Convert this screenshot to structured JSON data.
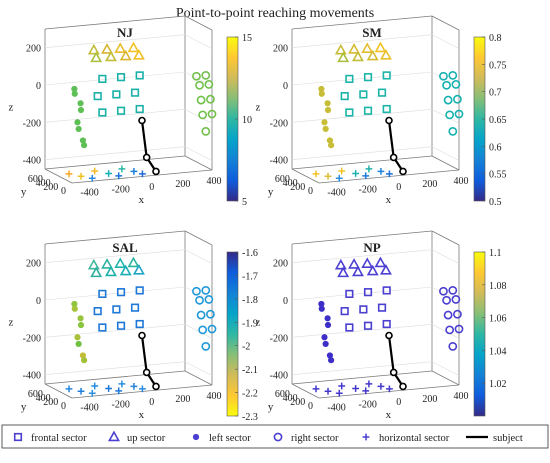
{
  "chart_data": {
    "type": "scatter",
    "title": "Point-to-point reaching movements",
    "xlabel": "x",
    "ylabel": "y",
    "zlabel": "z",
    "x_ticks": [
      "-400",
      "-200",
      "0",
      "200",
      "400"
    ],
    "y_ticks": [
      "0",
      "200",
      "400",
      "600"
    ],
    "z_ticks": [
      "200",
      "0",
      "-200",
      "-400"
    ],
    "xlim": [
      -500,
      400
    ],
    "ylim": [
      0,
      700
    ],
    "zlim": [
      -450,
      300
    ],
    "legend": {
      "placement": "bottom",
      "entries": [
        {
          "label": "frontal sector",
          "marker": "square"
        },
        {
          "label": "up sector",
          "marker": "triangle"
        },
        {
          "label": "left sector",
          "marker": "dot"
        },
        {
          "label": "right sector",
          "marker": "circle"
        },
        {
          "label": "horizontal sector",
          "marker": "plus"
        },
        {
          "label": "subject",
          "marker": "line"
        }
      ]
    },
    "subject_segments": [
      [
        -50,
        0,
        -150
      ],
      [
        -20,
        0,
        -350
      ],
      [
        40,
        0,
        -430
      ]
    ],
    "sectors": [
      {
        "name": "frontal sector",
        "marker": "square",
        "points": [
          [
            -280,
            100,
            80
          ],
          [
            -160,
            100,
            80
          ],
          [
            -40,
            100,
            80
          ],
          [
            -310,
            100,
            -10
          ],
          [
            -190,
            100,
            -10
          ],
          [
            -70,
            100,
            -10
          ],
          [
            -280,
            100,
            -100
          ],
          [
            -160,
            100,
            -100
          ],
          [
            -40,
            100,
            -100
          ]
        ]
      },
      {
        "name": "up sector",
        "marker": "triangle",
        "points": [
          [
            -320,
            160,
            230
          ],
          [
            -240,
            140,
            230
          ],
          [
            -160,
            120,
            230
          ],
          [
            -80,
            100,
            230
          ],
          [
            -290,
            220,
            180
          ],
          [
            -200,
            200,
            180
          ],
          [
            -110,
            180,
            180
          ],
          [
            -30,
            160,
            180
          ]
        ]
      },
      {
        "name": "left sector",
        "marker": "dot",
        "points": [
          [
            -460,
            100,
            40
          ],
          [
            -450,
            130,
            10
          ],
          [
            -420,
            100,
            -40
          ],
          [
            -410,
            130,
            -80
          ],
          [
            -440,
            100,
            -140
          ],
          [
            -425,
            130,
            -180
          ],
          [
            -405,
            100,
            -240
          ],
          [
            -390,
            130,
            -270
          ]
        ]
      },
      {
        "name": "right sector",
        "marker": "circle",
        "points": [
          [
            300,
            0,
            60
          ],
          [
            360,
            0,
            60
          ],
          [
            320,
            0,
            10
          ],
          [
            380,
            0,
            10
          ],
          [
            330,
            0,
            -70
          ],
          [
            390,
            0,
            -70
          ],
          [
            340,
            0,
            -150
          ],
          [
            400,
            0,
            -150
          ],
          [
            360,
            0,
            -240
          ]
        ]
      },
      {
        "name": "horizontal sector",
        "marker": "plus",
        "points": [
          [
            -420,
            400,
            -450
          ],
          [
            -250,
            420,
            -450
          ],
          [
            -80,
            400,
            -450
          ],
          [
            -380,
            250,
            -450
          ],
          [
            -200,
            260,
            -450
          ],
          [
            -40,
            250,
            -450
          ],
          [
            -340,
            120,
            -450
          ],
          [
            -170,
            120,
            -450
          ],
          [
            -20,
            110,
            -450
          ]
        ]
      }
    ],
    "panels": [
      {
        "title": "NJ",
        "colorbar": {
          "min": 5,
          "max": 15,
          "ticks": [
            "15",
            "10",
            "5"
          ],
          "colormap": "parula",
          "reversed": false
        },
        "sector_colors": {
          "frontal sector": "#19b0a8",
          "up sector": "#86c23c",
          "left sector": "#5fbf57",
          "right sector": "#71c04a",
          "horizontal sector": "#2f8ae0"
        },
        "point_colors": {
          "up sector": [
            "#c3bd36",
            "#d7b432",
            "#e7bb2a",
            "#f1c223",
            "#a8bf3a",
            "#c2bd35",
            "#d9b531",
            "#f0be26"
          ],
          "horizontal sector": [
            "#f4a726",
            "#f3b925",
            "#2bb6a6",
            "#f0c123",
            "#12b1b5",
            "#1c7fdd",
            "#2a8ae2",
            "#1b73dc",
            "#1f6cd8"
          ]
        }
      },
      {
        "title": "SM",
        "colorbar": {
          "min": 0.5,
          "max": 0.8,
          "ticks": [
            "0.8",
            "0.75",
            "0.7",
            "0.65",
            "0.6",
            "0.55",
            "0.5"
          ],
          "colormap": "parula",
          "reversed": false
        },
        "sector_colors": {
          "frontal sector": "#1ab4a8",
          "up sector": "#b0bd3a",
          "left sector": "#c7bd36",
          "right sector": "#14b1b2",
          "horizontal sector": "#2b8ad8"
        },
        "point_colors": {
          "up sector": [
            "#c8bc37",
            "#d6ba32",
            "#e4bd2c",
            "#f0c224",
            "#a9be3b",
            "#c1bc37",
            "#d2bb33",
            "#e9bf29"
          ],
          "horizontal sector": [
            "#f3c223",
            "#f1c423",
            "#23b3a6",
            "#dbbd31",
            "#1ab2ad",
            "#1f85dc",
            "#2c8ee0",
            "#1e7bdc",
            "#1e73d8"
          ]
        }
      },
      {
        "title": "SAL",
        "colorbar": {
          "min": -2.3,
          "max": -1.6,
          "ticks": [
            "-1.6",
            "-1.7",
            "-1.8",
            "-1.9",
            "-2",
            "-2.1",
            "-2.2",
            "-2.3"
          ],
          "colormap": "parula",
          "reversed": true
        },
        "sector_colors": {
          "frontal sector": "#1e78d8",
          "up sector": "#29b59b",
          "left sector": "#7ec340",
          "right sector": "#1f98d8",
          "horizontal sector": "#2d7fe0"
        },
        "point_colors": {
          "up sector": [
            "#3fb89c",
            "#2bb2a0",
            "#1fb3aa",
            "#2bb59d",
            "#2dae9f",
            "#1ab2a8",
            "#19aeb5",
            "#1ea6c5"
          ],
          "left sector": [
            "#8fc53c",
            "#a5c23a",
            "#97c43c",
            "#89c43e",
            "#a8c03a",
            "#6ec142",
            "#c2bd36",
            "#a2c13a"
          ],
          "horizontal sector": [
            "#2386dc",
            "#2489e0",
            "#2a90e0",
            "#1f7fdc",
            "#1b78d8",
            "#2683dd",
            "#2c91de",
            "#1e7adb",
            "#2a8ae0"
          ]
        }
      },
      {
        "title": "NP",
        "colorbar": {
          "min": 1.0,
          "max": 1.1,
          "ticks": [
            "1.1",
            "1.08",
            "1.06",
            "1.04",
            "1.02"
          ],
          "colormap": "parula",
          "reversed": false
        },
        "sector_colors": {
          "frontal sector": "#4b3fd0",
          "up sector": "#4c40d2",
          "left sector": "#3d2ec8",
          "right sector": "#4a3ed0",
          "horizontal sector": "#4538cc"
        },
        "point_colors": {}
      }
    ]
  }
}
